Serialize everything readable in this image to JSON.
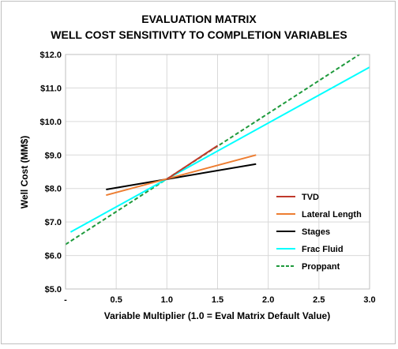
{
  "chart_data": {
    "type": "line",
    "title_lines": [
      "EVALUATION MATRIX",
      "WELL COST SENSITIVITY TO COMPLETION VARIABLES"
    ],
    "xlabel": "Variable Multiplier (1.0 = Eval Matrix Default Value)",
    "ylabel": "Well Cost (MM$)",
    "xlim": [
      0,
      3.0
    ],
    "ylim": [
      5.0,
      12.0
    ],
    "x_ticks": [
      {
        "value": 0,
        "label": "-"
      },
      {
        "value": 0.5,
        "label": "0.5"
      },
      {
        "value": 1.0,
        "label": "1.0"
      },
      {
        "value": 1.5,
        "label": "1.5"
      },
      {
        "value": 2.0,
        "label": "2.0"
      },
      {
        "value": 2.5,
        "label": "2.5"
      },
      {
        "value": 3.0,
        "label": "3.0"
      }
    ],
    "y_ticks": [
      {
        "value": 5,
        "label": "$5.0"
      },
      {
        "value": 6,
        "label": "$6.0"
      },
      {
        "value": 7,
        "label": "$7.0"
      },
      {
        "value": 8,
        "label": "$8.0"
      },
      {
        "value": 9,
        "label": "$9.0"
      },
      {
        "value": 10,
        "label": "$10.0"
      },
      {
        "value": 11,
        "label": "$11.0"
      },
      {
        "value": 12,
        "label": "$12.0"
      }
    ],
    "grid": {
      "x": true,
      "y": true
    },
    "legend_position": "right",
    "series": [
      {
        "name": "TVD",
        "color": "#c0392b",
        "dash": false,
        "x": [
          1.0,
          1.5
        ],
        "y": [
          8.28,
          9.28
        ]
      },
      {
        "name": "Lateral Length",
        "color": "#ed7d31",
        "dash": false,
        "x": [
          0.4,
          1.88
        ],
        "y": [
          7.8,
          9.0
        ]
      },
      {
        "name": "Stages",
        "color": "#000000",
        "dash": false,
        "x": [
          0.4,
          1.88
        ],
        "y": [
          7.97,
          8.73
        ]
      },
      {
        "name": "Frac Fluid",
        "color": "#00ffff",
        "dash": false,
        "x": [
          0.05,
          3.0
        ],
        "y": [
          6.7,
          11.62
        ]
      },
      {
        "name": "Proppant",
        "color": "#1e9a3c",
        "dash": true,
        "x": [
          0,
          2.9
        ],
        "y": [
          6.33,
          12.0
        ]
      }
    ]
  }
}
